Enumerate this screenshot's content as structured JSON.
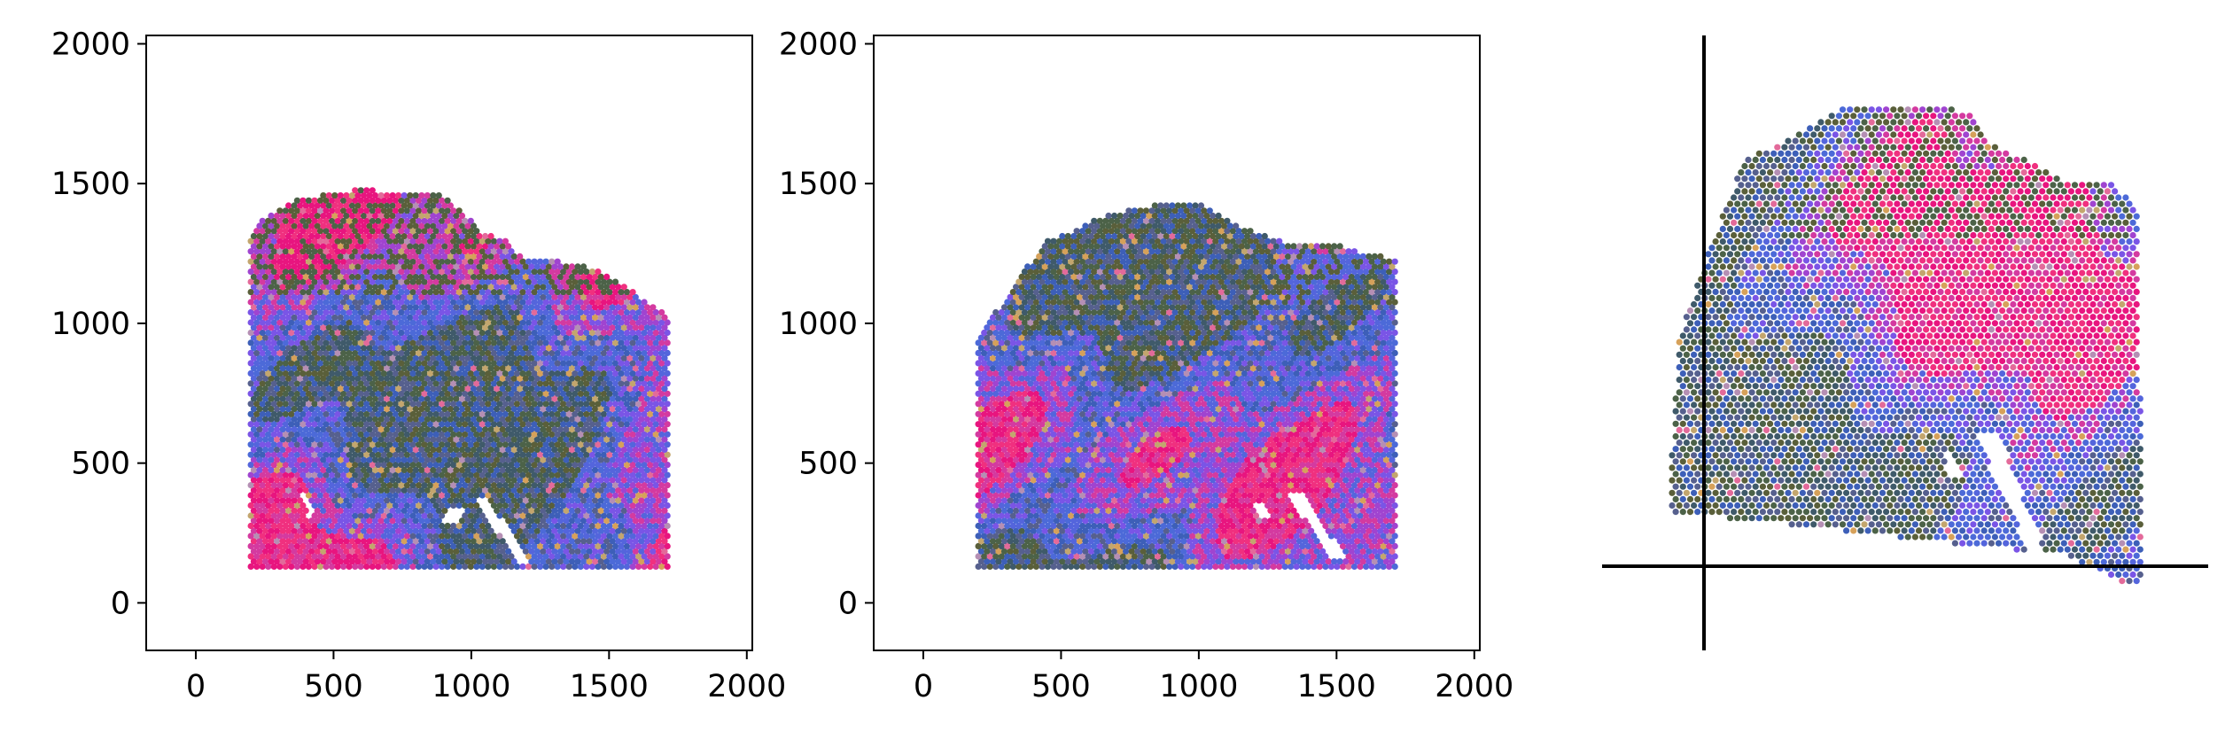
{
  "chart_data": [
    {
      "type": "scatter",
      "title": "",
      "xlabel": "",
      "ylabel": "",
      "xlim": [
        -180,
        2020
      ],
      "ylim": [
        -170,
        2030
      ],
      "xticks": [
        "0",
        "500",
        "1000",
        "1500",
        "2000"
      ],
      "yticks": [
        "0",
        "500",
        "1000",
        "1500",
        "2000"
      ],
      "grid": false,
      "spot_region": {
        "outline": [
          [
            200,
            130
          ],
          [
            1720,
            130
          ],
          [
            1720,
            1030
          ],
          [
            1620,
            1080
          ],
          [
            1560,
            1140
          ],
          [
            1430,
            1200
          ],
          [
            1290,
            1230
          ],
          [
            1190,
            1230
          ],
          [
            1120,
            1300
          ],
          [
            1040,
            1330
          ],
          [
            920,
            1440
          ],
          [
            880,
            1460
          ],
          [
            600,
            1480
          ],
          [
            460,
            1460
          ],
          [
            360,
            1440
          ],
          [
            230,
            1370
          ],
          [
            200,
            1330
          ]
        ],
        "gaps": [
          [
            [
              920,
              340
            ],
            [
              980,
              340
            ],
            [
              960,
              280
            ],
            [
              900,
              290
            ]
          ],
          [
            [
              1010,
              380
            ],
            [
              1060,
              380
            ],
            [
              1210,
              140
            ],
            [
              1170,
              140
            ]
          ],
          [
            [
              370,
              390
            ],
            [
              400,
              400
            ],
            [
              430,
              320
            ],
            [
              410,
              310
            ]
          ]
        ]
      }
    },
    {
      "type": "scatter",
      "title": "",
      "xlabel": "",
      "ylabel": "",
      "xlim": [
        -180,
        2020
      ],
      "ylim": [
        -170,
        2030
      ],
      "xticks": [
        "0",
        "500",
        "1000",
        "1500",
        "2000"
      ],
      "yticks": [
        "0",
        "500",
        "1000",
        "1500",
        "2000"
      ],
      "grid": false,
      "spot_region": {
        "outline": [
          [
            200,
            130
          ],
          [
            1720,
            130
          ],
          [
            1720,
            1230
          ],
          [
            1560,
            1260
          ],
          [
            1500,
            1280
          ],
          [
            1400,
            1290
          ],
          [
            1310,
            1290
          ],
          [
            1220,
            1320
          ],
          [
            1150,
            1350
          ],
          [
            1030,
            1420
          ],
          [
            900,
            1430
          ],
          [
            760,
            1410
          ],
          [
            650,
            1380
          ],
          [
            560,
            1340
          ],
          [
            440,
            1290
          ],
          [
            330,
            1140
          ],
          [
            200,
            950
          ]
        ],
        "gaps": [
          [
            [
              1310,
              400
            ],
            [
              1370,
              400
            ],
            [
              1540,
              150
            ],
            [
              1490,
              150
            ]
          ],
          [
            [
              1200,
              350
            ],
            [
              1240,
              350
            ],
            [
              1260,
              300
            ],
            [
              1220,
              300
            ]
          ]
        ]
      }
    },
    {
      "type": "scatter",
      "title": "",
      "xlabel": "",
      "ylabel": "",
      "axes": "centered",
      "ticks_shown": false,
      "grid": false,
      "spot_region": {
        "outline": [
          [
            110,
            290
          ],
          [
            1270,
            160
          ],
          [
            1460,
            70
          ],
          [
            1480,
            110
          ],
          [
            1470,
            1150
          ],
          [
            1400,
            1240
          ],
          [
            1250,
            1250
          ],
          [
            1140,
            1310
          ],
          [
            1040,
            1350
          ],
          [
            980,
            1450
          ],
          [
            760,
            1460
          ],
          [
            630,
            1470
          ],
          [
            540,
            1420
          ],
          [
            430,
            1350
          ],
          [
            330,
            1310
          ],
          [
            260,
            1130
          ],
          [
            140,
            800
          ]
        ],
        "gaps": [
          [
            [
              1000,
              510
            ],
            [
              1060,
              520
            ],
            [
              1200,
              170
            ],
            [
              1160,
              160
            ]
          ],
          [
            [
              900,
              450
            ],
            [
              930,
              460
            ],
            [
              960,
              400
            ],
            [
              930,
              390
            ]
          ]
        ]
      }
    }
  ],
  "palette": [
    "#e8157f",
    "#f0307f",
    "#d43aa0",
    "#a044d0",
    "#7a55e6",
    "#5465dc",
    "#4c6ad8",
    "#3d5fb8",
    "#56608e",
    "#3f5a6a",
    "#4c6248",
    "#5a5f3a",
    "#c3a66e",
    "#d6a15a",
    "#b58fb4",
    "#e36a9a"
  ]
}
